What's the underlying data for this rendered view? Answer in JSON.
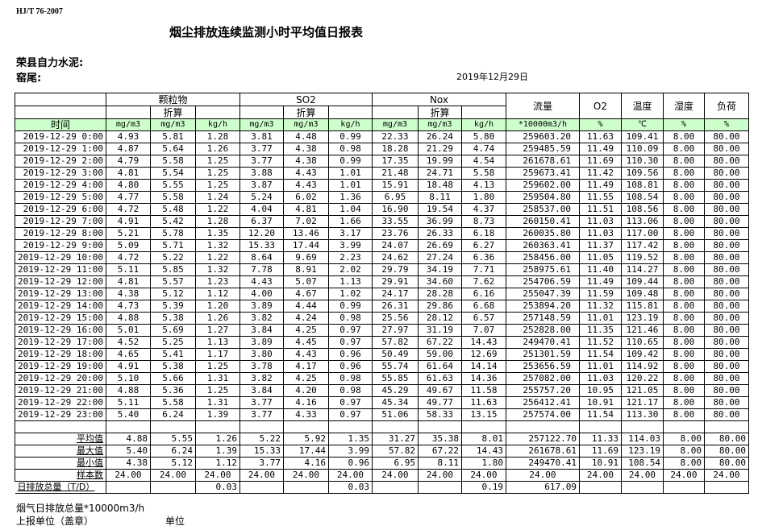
{
  "standard": "HJ/T  76-2007",
  "title": "烟尘排放连续监测小时平均值日报表",
  "company": "荣县自力水泥:",
  "kiln": "窑尾:",
  "date": "2019年12月29日",
  "header": {
    "group_particulate": "颗粒物",
    "group_so2": "SO2",
    "group_nox": "Nox",
    "converted": "折算",
    "flow": "流量",
    "o2": "O2",
    "temperature": "温度",
    "humidity": "湿度",
    "load": "负荷",
    "time": "时间",
    "units": [
      "mg/m3",
      "mg/m3",
      "kg/h",
      "mg/m3",
      "mg/m3",
      "kg/h",
      "mg/m3",
      "mg/m3",
      "kg/h",
      "*10000m3/h",
      "%",
      "℃",
      "%",
      "%"
    ]
  },
  "rows": [
    [
      "2019-12-29 0:00",
      "4.93",
      "5.81",
      "1.28",
      "3.81",
      "4.48",
      "0.99",
      "22.33",
      "26.24",
      "5.80",
      "259603.20",
      "11.63",
      "109.41",
      "8.00",
      "80.00"
    ],
    [
      "2019-12-29 1:00",
      "4.87",
      "5.64",
      "1.26",
      "3.77",
      "4.38",
      "0.98",
      "18.28",
      "21.29",
      "4.74",
      "259485.59",
      "11.49",
      "110.09",
      "8.00",
      "80.00"
    ],
    [
      "2019-12-29 2:00",
      "4.79",
      "5.58",
      "1.25",
      "3.77",
      "4.38",
      "0.99",
      "17.35",
      "19.99",
      "4.54",
      "261678.61",
      "11.69",
      "110.30",
      "8.00",
      "80.00"
    ],
    [
      "2019-12-29 3:00",
      "4.81",
      "5.54",
      "1.25",
      "3.88",
      "4.43",
      "1.01",
      "21.48",
      "24.71",
      "5.58",
      "259673.41",
      "11.42",
      "109.56",
      "8.00",
      "80.00"
    ],
    [
      "2019-12-29 4:00",
      "4.80",
      "5.55",
      "1.25",
      "3.87",
      "4.43",
      "1.01",
      "15.91",
      "18.48",
      "4.13",
      "259602.00",
      "11.49",
      "108.81",
      "8.00",
      "80.00"
    ],
    [
      "2019-12-29 5:00",
      "4.77",
      "5.58",
      "1.24",
      "5.24",
      "6.02",
      "1.36",
      "6.95",
      "8.11",
      "1.80",
      "259504.80",
      "11.55",
      "108.54",
      "8.00",
      "80.00"
    ],
    [
      "2019-12-29 6:00",
      "4.72",
      "5.48",
      "1.22",
      "4.04",
      "4.81",
      "1.04",
      "16.90",
      "19.54",
      "4.37",
      "258537.00",
      "11.51",
      "108.56",
      "8.00",
      "80.00"
    ],
    [
      "2019-12-29 7:00",
      "4.91",
      "5.42",
      "1.28",
      "6.37",
      "7.02",
      "1.66",
      "33.55",
      "36.99",
      "8.73",
      "260150.41",
      "11.03",
      "113.06",
      "8.00",
      "80.00"
    ],
    [
      "2019-12-29 8:00",
      "5.21",
      "5.78",
      "1.35",
      "12.20",
      "13.46",
      "3.17",
      "23.76",
      "26.33",
      "6.18",
      "260035.80",
      "11.03",
      "117.00",
      "8.00",
      "80.00"
    ],
    [
      "2019-12-29 9:00",
      "5.09",
      "5.71",
      "1.32",
      "15.33",
      "17.44",
      "3.99",
      "24.07",
      "26.69",
      "6.27",
      "260363.41",
      "11.37",
      "117.42",
      "8.00",
      "80.00"
    ],
    [
      "2019-12-29 10:00",
      "4.72",
      "5.22",
      "1.22",
      "8.64",
      "9.69",
      "2.23",
      "24.62",
      "27.24",
      "6.36",
      "258456.00",
      "11.05",
      "119.52",
      "8.00",
      "80.00"
    ],
    [
      "2019-12-29 11:00",
      "5.11",
      "5.85",
      "1.32",
      "7.78",
      "8.91",
      "2.02",
      "29.79",
      "34.19",
      "7.71",
      "258975.61",
      "11.40",
      "114.27",
      "8.00",
      "80.00"
    ],
    [
      "2019-12-29 12:00",
      "4.81",
      "5.57",
      "1.23",
      "4.43",
      "5.07",
      "1.13",
      "29.91",
      "34.60",
      "7.62",
      "254706.59",
      "11.49",
      "109.44",
      "8.00",
      "80.00"
    ],
    [
      "2019-12-29 13:00",
      "4.38",
      "5.12",
      "1.12",
      "4.00",
      "4.67",
      "1.02",
      "24.17",
      "28.28",
      "6.16",
      "255047.39",
      "11.59",
      "109.48",
      "8.00",
      "80.00"
    ],
    [
      "2019-12-29 14:00",
      "4.73",
      "5.39",
      "1.20",
      "3.89",
      "4.44",
      "0.99",
      "26.31",
      "29.86",
      "6.68",
      "253894.20",
      "11.32",
      "115.81",
      "8.00",
      "80.00"
    ],
    [
      "2019-12-29 15:00",
      "4.88",
      "5.38",
      "1.26",
      "3.82",
      "4.24",
      "0.98",
      "25.56",
      "28.12",
      "6.57",
      "257148.59",
      "11.01",
      "123.19",
      "8.00",
      "80.00"
    ],
    [
      "2019-12-29 16:00",
      "5.01",
      "5.69",
      "1.27",
      "3.84",
      "4.25",
      "0.97",
      "27.97",
      "31.19",
      "7.07",
      "252828.00",
      "11.35",
      "121.46",
      "8.00",
      "80.00"
    ],
    [
      "2019-12-29 17:00",
      "4.52",
      "5.25",
      "1.13",
      "3.89",
      "4.45",
      "0.97",
      "57.82",
      "67.22",
      "14.43",
      "249470.41",
      "11.52",
      "110.65",
      "8.00",
      "80.00"
    ],
    [
      "2019-12-29 18:00",
      "4.65",
      "5.41",
      "1.17",
      "3.80",
      "4.43",
      "0.96",
      "50.49",
      "59.00",
      "12.69",
      "251301.59",
      "11.54",
      "109.42",
      "8.00",
      "80.00"
    ],
    [
      "2019-12-29 19:00",
      "4.91",
      "5.38",
      "1.25",
      "3.78",
      "4.17",
      "0.96",
      "55.74",
      "61.64",
      "14.14",
      "253656.59",
      "11.01",
      "114.92",
      "8.00",
      "80.00"
    ],
    [
      "2019-12-29 20:00",
      "5.10",
      "5.66",
      "1.31",
      "3.82",
      "4.25",
      "0.98",
      "55.85",
      "61.63",
      "14.36",
      "257082.00",
      "11.03",
      "120.22",
      "8.00",
      "80.00"
    ],
    [
      "2019-12-29 21:00",
      "4.88",
      "5.36",
      "1.25",
      "3.84",
      "4.20",
      "0.98",
      "45.29",
      "49.67",
      "11.58",
      "255757.20",
      "10.95",
      "121.05",
      "8.00",
      "80.00"
    ],
    [
      "2019-12-29 22:00",
      "5.11",
      "5.58",
      "1.31",
      "3.77",
      "4.16",
      "0.97",
      "45.34",
      "49.77",
      "11.63",
      "256412.41",
      "10.91",
      "121.17",
      "8.00",
      "80.00"
    ],
    [
      "2019-12-29 23:00",
      "5.40",
      "6.24",
      "1.39",
      "3.77",
      "4.33",
      "0.97",
      "51.06",
      "58.33",
      "13.15",
      "257574.00",
      "11.54",
      "113.30",
      "8.00",
      "80.00"
    ]
  ],
  "stats": [
    [
      "平均值",
      "4.88",
      "5.55",
      "1.26",
      "5.22",
      "5.92",
      "1.35",
      "31.27",
      "35.38",
      "8.01",
      "257122.70",
      "11.33",
      "114.03",
      "8.00",
      "80.00"
    ],
    [
      "最大值",
      "5.40",
      "6.24",
      "1.39",
      "15.33",
      "17.44",
      "3.99",
      "57.82",
      "67.22",
      "14.43",
      "261678.61",
      "11.69",
      "123.19",
      "8.00",
      "80.00"
    ],
    [
      "最小值",
      "4.38",
      "5.12",
      "1.12",
      "3.77",
      "4.16",
      "0.96",
      "6.95",
      "8.11",
      "1.80",
      "249470.41",
      "10.91",
      "108.54",
      "8.00",
      "80.00"
    ],
    [
      "样本数",
      "24.00",
      "24.00",
      "24.00",
      "24.00",
      "24.00",
      "24.00",
      "24.00",
      "24.00",
      "24.00",
      "24.00",
      "24.00",
      "24.00",
      "24.00",
      "24.00"
    ]
  ],
  "total": [
    "日排放总量（T/D）",
    "",
    "",
    "0.03",
    "",
    "",
    "0.03",
    "",
    "",
    "0.19",
    "617.09",
    "",
    "",
    "",
    ""
  ],
  "footer": {
    "flue_gas_total": "烟气日排放总量*10000m3/h",
    "reporting_unit": "上报单位（盖章）",
    "unit": "单位"
  }
}
